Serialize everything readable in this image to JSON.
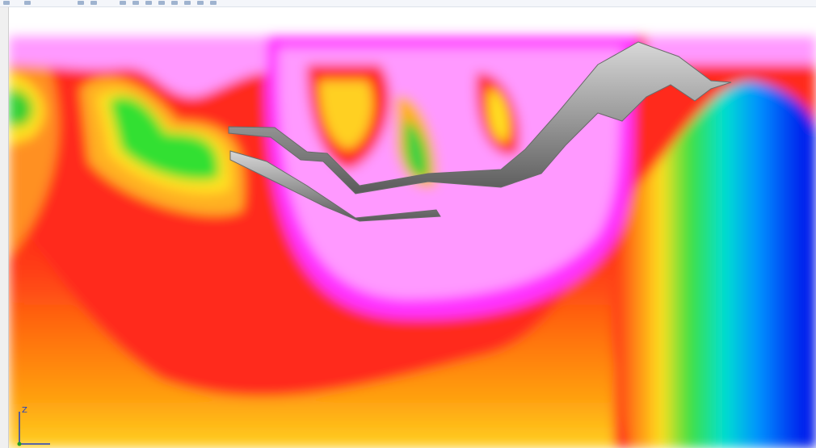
{
  "viewport": {
    "axis_label": "Z"
  }
}
